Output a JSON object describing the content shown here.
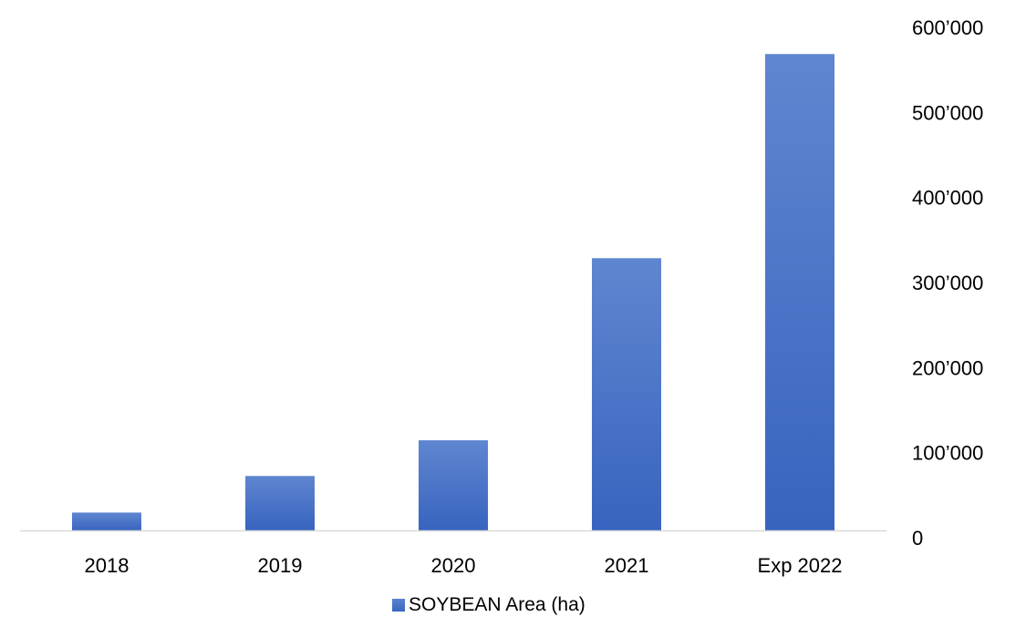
{
  "chart_data": {
    "type": "bar",
    "categories": [
      "2018",
      "2019",
      "2020",
      "2021",
      "Exp 2022"
    ],
    "series": [
      {
        "name": "SOYBEAN Area (ha)",
        "values": [
          21000,
          64000,
          106000,
          320000,
          560000
        ],
        "color": "#4472c4"
      }
    ],
    "ylim": [
      0,
      600000
    ],
    "yticks": [
      0,
      100000,
      200000,
      300000,
      400000,
      500000,
      600000
    ],
    "ytick_labels": [
      "0",
      "100’000",
      "200’000",
      "300’000",
      "400’000",
      "500’000",
      "600’000"
    ],
    "y_axis_side": "right",
    "grid": false,
    "legend_position": "bottom",
    "title": "",
    "xlabel": "",
    "ylabel": ""
  },
  "colors": {
    "bar_top": "#5f86d0",
    "bar_bottom": "#3864bf",
    "axis_line": "#d9d9d9"
  }
}
